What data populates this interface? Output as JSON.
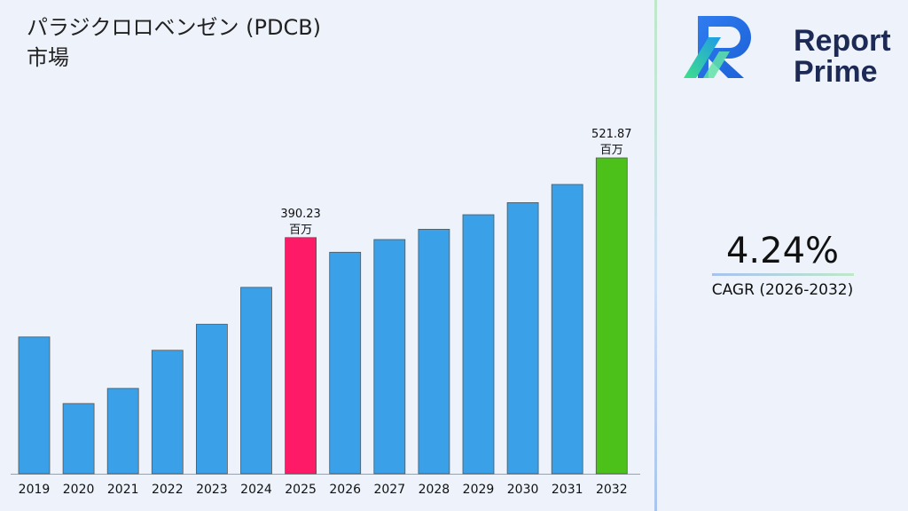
{
  "title": "パラジクロロベンゼン (PDCB)\n市場",
  "brand": {
    "line1": "Report",
    "line2": "Prime"
  },
  "cagr": {
    "value": "4.24%",
    "label": "CAGR (2026-2032)"
  },
  "colors": {
    "default_bar": "#3aa0e8",
    "base_year_bar": "#ff1a68",
    "final_year_bar": "#4cc11a"
  },
  "chart_data": {
    "type": "bar",
    "title": "パラジクロロベンゼン (PDCB)\n市場",
    "xlabel": "",
    "ylabel": "",
    "unit": "百万",
    "categories": [
      "2019",
      "2020",
      "2021",
      "2022",
      "2023",
      "2024",
      "2025",
      "2026",
      "2027",
      "2028",
      "2029",
      "2030",
      "2031",
      "2032"
    ],
    "values": [
      226,
      116,
      141,
      204,
      247,
      308,
      390.23,
      366,
      387,
      404,
      428,
      448,
      478,
      521.87
    ],
    "highlights": {
      "2025": "base",
      "2032": "final"
    },
    "data_labels": [
      {
        "category": "2025",
        "value": "390.23",
        "unit": "百万"
      },
      {
        "category": "2032",
        "value": "521.87",
        "unit": "百万"
      }
    ],
    "ylim": [
      0,
      521.87
    ],
    "grid": false,
    "legend": "none"
  }
}
